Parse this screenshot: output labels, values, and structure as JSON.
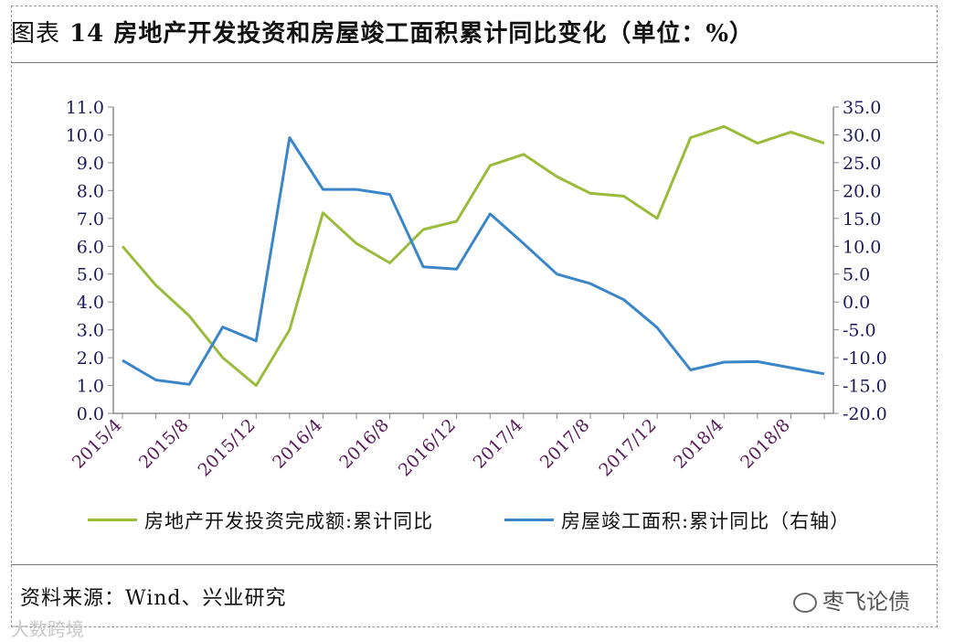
{
  "header": {
    "label": "图表",
    "number": "14",
    "title": "房地产开发投资和房屋竣工面积累计同比变化（单位：%）"
  },
  "source": "资料来源：Wind、兴业研究",
  "watermark_right": "枣飞论债",
  "watermark_left": "大数跨境",
  "chart_data": {
    "type": "line",
    "categories": [
      "2015/4",
      "2015/6",
      "2015/8",
      "2015/10",
      "2015/12",
      "2016/2",
      "2016/4",
      "2016/6",
      "2016/8",
      "2016/10",
      "2016/12",
      "2017/2",
      "2017/4",
      "2017/6",
      "2017/8",
      "2017/10",
      "2017/12",
      "2018/2",
      "2018/4",
      "2018/6",
      "2018/8",
      "2018/10"
    ],
    "x_tick_labels": [
      "2015/4",
      "2015/8",
      "2015/12",
      "2016/4",
      "2016/8",
      "2016/12",
      "2017/4",
      "2017/8",
      "2017/12",
      "2018/4",
      "2018/8"
    ],
    "series": [
      {
        "name": "房地产开发投资完成额:累计同比",
        "axis": "left",
        "color": "#9bbb3c",
        "values": [
          6.0,
          4.6,
          3.5,
          2.0,
          1.0,
          3.0,
          7.2,
          6.1,
          5.4,
          6.6,
          6.9,
          8.9,
          9.3,
          8.5,
          7.9,
          7.8,
          7.0,
          9.9,
          10.3,
          9.7,
          10.1,
          9.7
        ]
      },
      {
        "name": "房屋竣工面积:累计同比（右轴）",
        "axis": "right",
        "color": "#3a86c8",
        "values": [
          -10.5,
          -14.0,
          -14.8,
          -4.5,
          -7.0,
          29.5,
          20.2,
          20.2,
          19.3,
          6.3,
          5.9,
          15.8,
          10.5,
          5.0,
          3.3,
          0.4,
          -4.6,
          -12.2,
          -10.8,
          -10.7,
          -11.8,
          -12.9
        ]
      }
    ],
    "y_left": {
      "min": 0,
      "max": 11,
      "ticks": [
        "0.0",
        "1.0",
        "2.0",
        "3.0",
        "4.0",
        "5.0",
        "6.0",
        "7.0",
        "8.0",
        "9.0",
        "10.0",
        "11.0"
      ]
    },
    "y_right": {
      "min": -20,
      "max": 35,
      "ticks": [
        "-20.0",
        "-15.0",
        "-10.0",
        "-5.0",
        "0.0",
        "5.0",
        "10.0",
        "15.0",
        "20.0",
        "25.0",
        "30.0",
        "35.0"
      ]
    },
    "legend_position": "bottom",
    "grid": false
  }
}
